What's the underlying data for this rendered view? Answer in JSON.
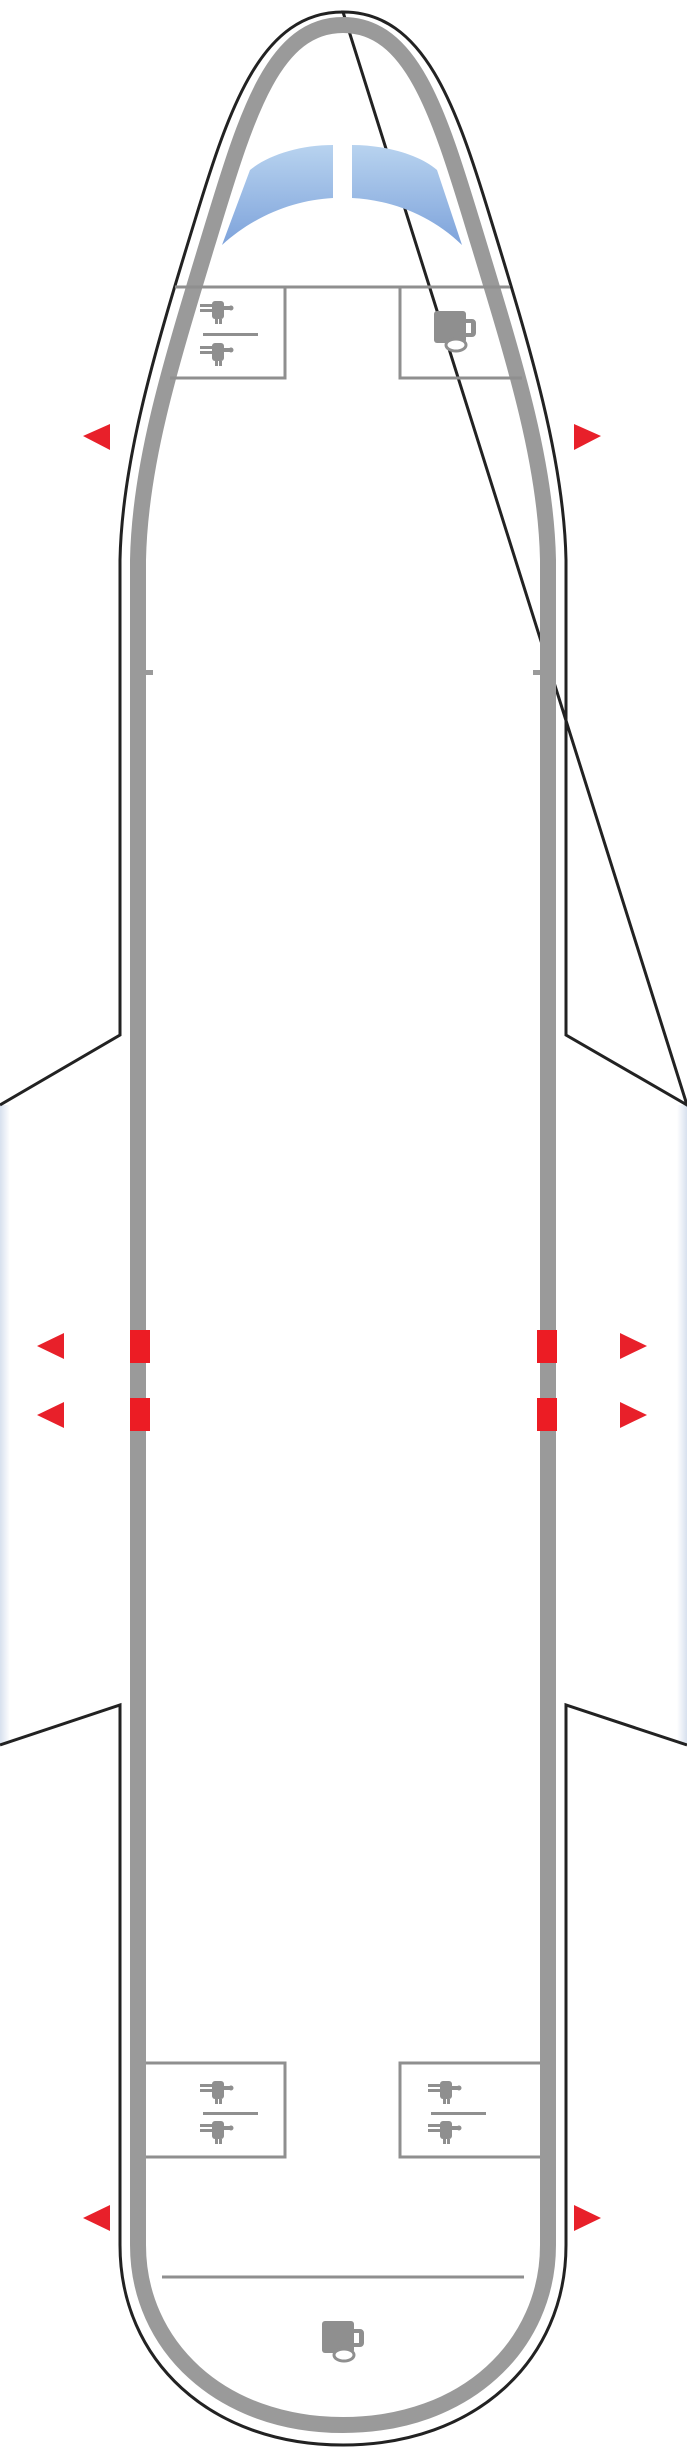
{
  "diagram": {
    "type": "aircraft-seat-map",
    "colors": {
      "background": "#ffffff",
      "outline": "#222222",
      "wall": "#9a9a9a",
      "room": "#8f8f8f",
      "door": "#ec1c24",
      "exit_arrow": "#e8202a",
      "windshield": "#8fb4e0",
      "wing_edge": "#c9d6ea"
    },
    "facilities": [
      {
        "kind": "lavatory",
        "icon": "lavatory-icon",
        "location": "front-left"
      },
      {
        "kind": "galley",
        "icon": "galley-icon",
        "location": "front-right"
      },
      {
        "kind": "lavatory",
        "icon": "lavatory-icon",
        "location": "rear-left"
      },
      {
        "kind": "lavatory",
        "icon": "lavatory-icon",
        "location": "rear-right"
      },
      {
        "kind": "galley",
        "icon": "galley-icon",
        "location": "rear-center"
      }
    ],
    "exits": [
      {
        "position": "front",
        "sides": [
          "left",
          "right"
        ]
      },
      {
        "position": "over-wing-1",
        "sides": [
          "left",
          "right"
        ]
      },
      {
        "position": "over-wing-2",
        "sides": [
          "left",
          "right"
        ]
      },
      {
        "position": "rear",
        "sides": [
          "left",
          "right"
        ]
      }
    ]
  }
}
